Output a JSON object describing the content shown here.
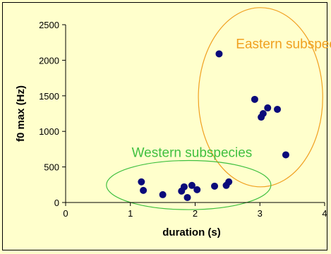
{
  "chart_data": {
    "type": "scatter",
    "xlabel": "duration (s)",
    "ylabel": "f0 max (Hz)",
    "xlim": [
      0,
      4
    ],
    "ylim": [
      0,
      2500
    ],
    "x_ticks": [
      "0",
      "1",
      "2",
      "3",
      "4"
    ],
    "y_ticks": [
      "0",
      "500",
      "1000",
      "1500",
      "2000",
      "2500"
    ],
    "grid": false,
    "series": [
      {
        "color": "#0a0a7a",
        "points": [
          {
            "x": 2.37,
            "y": 2090
          },
          {
            "x": 2.92,
            "y": 1450
          },
          {
            "x": 3.02,
            "y": 1200
          },
          {
            "x": 3.05,
            "y": 1250
          },
          {
            "x": 3.12,
            "y": 1330
          },
          {
            "x": 3.27,
            "y": 1310
          },
          {
            "x": 3.4,
            "y": 670
          }
        ]
      },
      {
        "color": "#0a0a7a",
        "points": [
          {
            "x": 1.17,
            "y": 290
          },
          {
            "x": 1.2,
            "y": 170
          },
          {
            "x": 1.5,
            "y": 110
          },
          {
            "x": 1.79,
            "y": 160
          },
          {
            "x": 1.83,
            "y": 220
          },
          {
            "x": 1.88,
            "y": 70
          },
          {
            "x": 1.95,
            "y": 240
          },
          {
            "x": 2.03,
            "y": 180
          },
          {
            "x": 2.3,
            "y": 230
          },
          {
            "x": 2.48,
            "y": 240
          },
          {
            "x": 2.52,
            "y": 290
          }
        ]
      }
    ],
    "annotations": [
      {
        "text": "Eastern subspecies",
        "color": "#f0a020",
        "x": 2.63,
        "y": 2170
      },
      {
        "text": "Western subspecies",
        "color": "#40c040",
        "x": 1.02,
        "y": 640
      }
    ],
    "ellipses": [
      {
        "color": "#f0a020",
        "cx": 3.01,
        "cy": 1480,
        "rx": 0.96,
        "ry": 1260
      },
      {
        "color": "#40c040",
        "cx": 1.9,
        "cy": 245,
        "rx": 1.27,
        "ry": 345
      }
    ]
  }
}
